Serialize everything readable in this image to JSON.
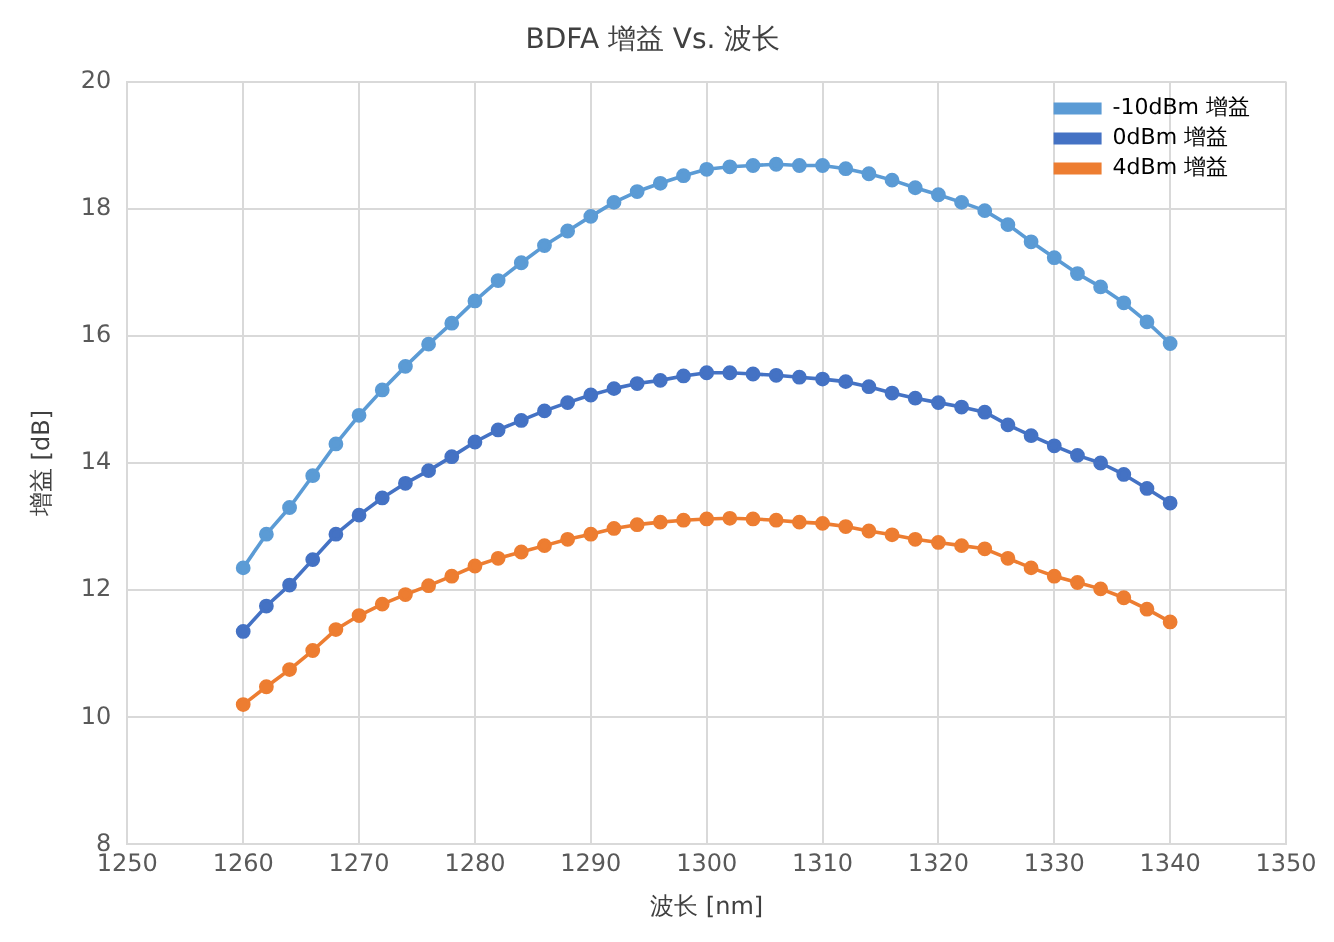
{
  "chart_data": {
    "type": "line",
    "title": "BDFA 增益 Vs. 波长",
    "xlabel": "波长 [nm]",
    "ylabel": "增益 [dB]",
    "x": [
      1260,
      1262,
      1264,
      1266,
      1268,
      1270,
      1272,
      1274,
      1276,
      1278,
      1280,
      1282,
      1284,
      1286,
      1288,
      1290,
      1292,
      1294,
      1296,
      1298,
      1300,
      1302,
      1304,
      1306,
      1308,
      1310,
      1312,
      1314,
      1316,
      1318,
      1320,
      1322,
      1324,
      1326,
      1328,
      1330,
      1332,
      1334,
      1336,
      1338,
      1340
    ],
    "series": [
      {
        "name": "-10dBm 增益",
        "color": "#5b9bd5",
        "values": [
          12.35,
          12.88,
          13.3,
          13.8,
          14.3,
          14.75,
          15.15,
          15.52,
          15.87,
          16.2,
          16.55,
          16.87,
          17.15,
          17.42,
          17.65,
          17.88,
          18.1,
          18.27,
          18.4,
          18.52,
          18.62,
          18.66,
          18.68,
          18.7,
          18.68,
          18.68,
          18.63,
          18.55,
          18.45,
          18.33,
          18.22,
          18.1,
          17.97,
          17.75,
          17.48,
          17.23,
          16.98,
          16.77,
          16.52,
          16.22,
          15.88
        ]
      },
      {
        "name": "0dBm 增益",
        "color": "#4472c4",
        "values": [
          11.35,
          11.75,
          12.08,
          12.48,
          12.88,
          13.18,
          13.45,
          13.68,
          13.88,
          14.1,
          14.33,
          14.52,
          14.67,
          14.82,
          14.95,
          15.07,
          15.17,
          15.25,
          15.3,
          15.37,
          15.42,
          15.42,
          15.4,
          15.38,
          15.35,
          15.32,
          15.28,
          15.2,
          15.1,
          15.02,
          14.95,
          14.88,
          14.8,
          14.6,
          14.43,
          14.27,
          14.12,
          14.0,
          13.82,
          13.6,
          13.37
        ]
      },
      {
        "name": "4dBm 增益",
        "color": "#ed7d31",
        "values": [
          10.2,
          10.48,
          10.75,
          11.05,
          11.38,
          11.6,
          11.78,
          11.93,
          12.07,
          12.22,
          12.38,
          12.5,
          12.6,
          12.7,
          12.8,
          12.88,
          12.97,
          13.03,
          13.07,
          13.1,
          13.12,
          13.13,
          13.12,
          13.1,
          13.07,
          13.05,
          13.0,
          12.93,
          12.87,
          12.8,
          12.75,
          12.7,
          12.65,
          12.5,
          12.35,
          12.22,
          12.12,
          12.02,
          11.88,
          11.7,
          11.5
        ]
      }
    ],
    "xlim": [
      1250,
      1350
    ],
    "xticks": [
      1250,
      1260,
      1270,
      1280,
      1290,
      1300,
      1310,
      1320,
      1330,
      1340,
      1350
    ],
    "ylim": [
      8,
      20
    ],
    "yticks": [
      8,
      10,
      12,
      14,
      16,
      18,
      20
    ],
    "grid": true,
    "legend": "top right",
    "marker": "circle",
    "line_style": "solid"
  }
}
